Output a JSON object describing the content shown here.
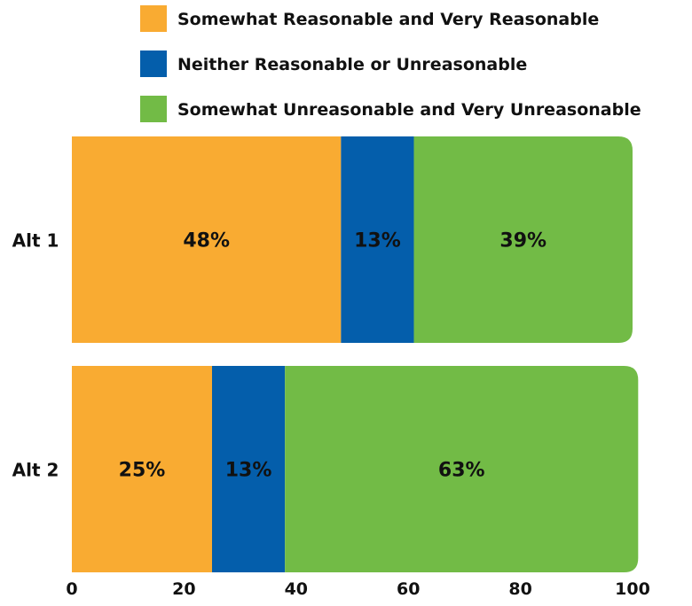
{
  "chart_data": {
    "type": "bar",
    "orientation": "horizontal",
    "stacked": true,
    "categories": [
      "Alt 1",
      "Alt 2"
    ],
    "series": [
      {
        "name": "Somewhat Reasonable and Very Reasonable",
        "color": "#F9AB32",
        "values": [
          48,
          25
        ],
        "labels": [
          "48%",
          "25%"
        ]
      },
      {
        "name": "Neither Reasonable or Unreasonable",
        "color": "#045EAB",
        "values": [
          13,
          13
        ],
        "labels": [
          "13%",
          "13%"
        ]
      },
      {
        "name": "Somewhat Unreasonable and Very Unreasonable",
        "color": "#72BB46",
        "values": [
          39,
          63
        ],
        "labels": [
          "39%",
          "63%"
        ]
      }
    ],
    "xlim": [
      0,
      100
    ],
    "xticks": [
      "0",
      "20",
      "40",
      "60",
      "80",
      "100"
    ],
    "grid": false,
    "legend_position": "top"
  }
}
